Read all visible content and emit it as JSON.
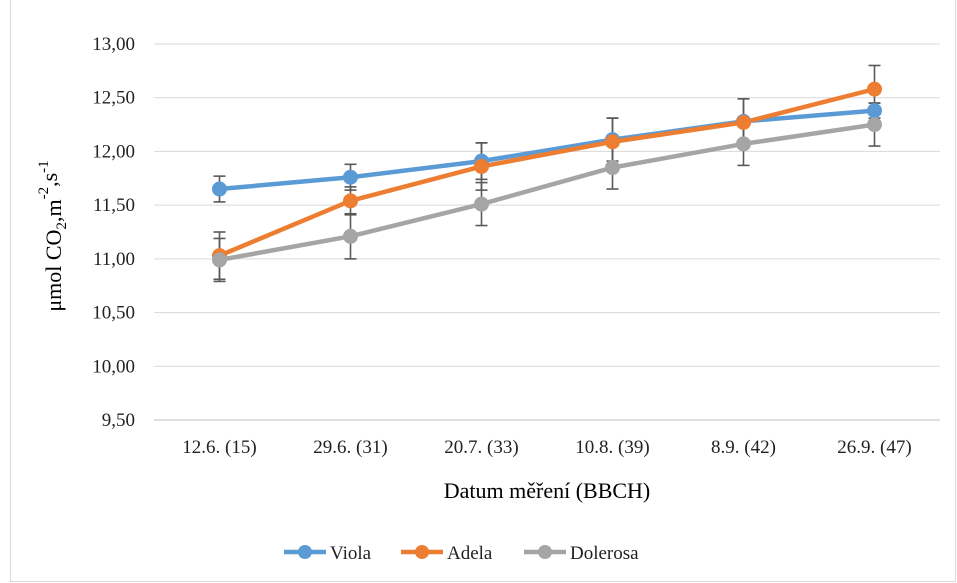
{
  "chart_data": {
    "type": "line",
    "categories": [
      "12.6. (15)",
      "29.6. (31)",
      "20.7. (33)",
      "10.8. (39)",
      "8.9. (42)",
      "26.9. (47)"
    ],
    "series": [
      {
        "name": "Viola",
        "color": "#5b9bd5",
        "values": [
          11.65,
          11.76,
          11.91,
          12.11,
          12.28,
          12.38
        ],
        "error": [
          0.12,
          0.12,
          0.17,
          0.2,
          0.21,
          0.07
        ]
      },
      {
        "name": "Adela",
        "color": "#ed7d31",
        "values": [
          11.03,
          11.54,
          11.86,
          12.09,
          12.27,
          12.58
        ],
        "error": [
          0.22,
          0.13,
          0.22,
          0.22,
          0.22,
          0.22
        ]
      },
      {
        "name": "Dolerosa",
        "color": "#a5a5a5",
        "values": [
          10.99,
          11.21,
          11.51,
          11.85,
          12.07,
          12.25
        ],
        "error": [
          0.2,
          0.21,
          0.2,
          0.2,
          0.2,
          0.2
        ]
      }
    ],
    "ylim": [
      9.5,
      13.0
    ],
    "yticks": [
      "9,50",
      "10,00",
      "10,50",
      "11,00",
      "11,50",
      "12,00",
      "12,50",
      "13,00"
    ],
    "xlabel": "Datum měření (BBCH)",
    "ylabel_parts": [
      "μmol CO",
      "2",
      ",m",
      "-2",
      ",s",
      "-1"
    ],
    "grid": true,
    "legend_position": "bottom"
  }
}
